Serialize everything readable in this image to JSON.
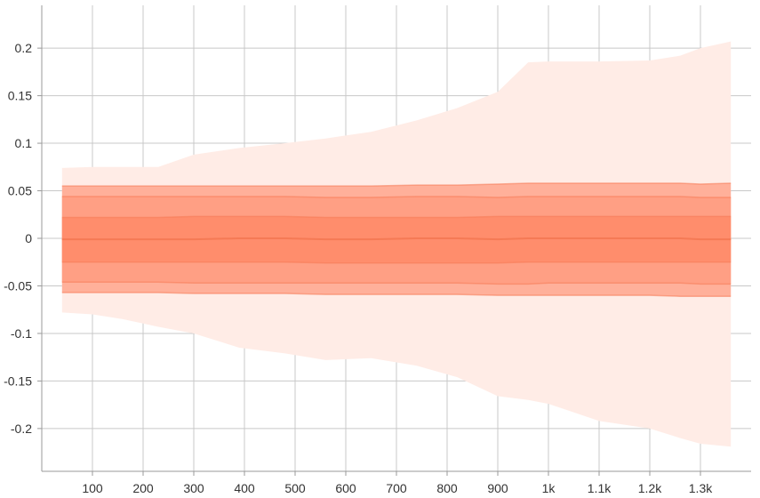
{
  "chart_data": {
    "type": "area",
    "title": "",
    "xlabel": "",
    "ylabel": "",
    "xlim": [
      0,
      1400
    ],
    "ylim": [
      -0.245,
      0.245
    ],
    "grid": true,
    "legend": "none",
    "x_ticks": [
      {
        "value": 100,
        "label": "100"
      },
      {
        "value": 200,
        "label": "200"
      },
      {
        "value": 300,
        "label": "300"
      },
      {
        "value": 400,
        "label": "400"
      },
      {
        "value": 500,
        "label": "500"
      },
      {
        "value": 600,
        "label": "600"
      },
      {
        "value": 700,
        "label": "700"
      },
      {
        "value": 800,
        "label": "800"
      },
      {
        "value": 900,
        "label": "900"
      },
      {
        "value": 1000,
        "label": "1k"
      },
      {
        "value": 1100,
        "label": "1.1k"
      },
      {
        "value": 1200,
        "label": "1.2k"
      },
      {
        "value": 1300,
        "label": "1.3k"
      }
    ],
    "y_ticks": [
      {
        "value": 0.2,
        "label": "0.2"
      },
      {
        "value": 0.15,
        "label": "0.15"
      },
      {
        "value": 0.1,
        "label": "0.1"
      },
      {
        "value": 0.05,
        "label": "0.05"
      },
      {
        "value": 0,
        "label": "0"
      },
      {
        "value": -0.05,
        "label": "-0.05"
      },
      {
        "value": -0.1,
        "label": "-0.1"
      },
      {
        "value": -0.15,
        "label": "-0.15"
      },
      {
        "value": -0.2,
        "label": "-0.2"
      }
    ],
    "x": [
      40,
      100,
      160,
      230,
      300,
      390,
      480,
      560,
      650,
      740,
      820,
      900,
      960,
      1000,
      1100,
      1200,
      1260,
      1300,
      1360
    ],
    "bands": [
      {
        "color": "#ffece6",
        "upper": [
          0.074,
          0.075,
          0.075,
          0.075,
          0.088,
          0.095,
          0.1,
          0.105,
          0.112,
          0.124,
          0.137,
          0.154,
          0.185,
          0.186,
          0.186,
          0.187,
          0.192,
          0.2,
          0.207
        ],
        "lower": [
          -0.078,
          -0.08,
          -0.085,
          -0.093,
          -0.1,
          -0.115,
          -0.121,
          -0.128,
          -0.126,
          -0.134,
          -0.146,
          -0.166,
          -0.17,
          -0.174,
          -0.192,
          -0.2,
          -0.21,
          -0.216,
          -0.219
        ]
      },
      {
        "color": "#ffb09a",
        "upper": [
          0.055,
          0.055,
          0.055,
          0.055,
          0.055,
          0.055,
          0.055,
          0.055,
          0.055,
          0.056,
          0.056,
          0.057,
          0.058,
          0.058,
          0.058,
          0.058,
          0.058,
          0.057,
          0.058
        ],
        "lower": [
          -0.057,
          -0.057,
          -0.057,
          -0.057,
          -0.058,
          -0.058,
          -0.058,
          -0.059,
          -0.059,
          -0.059,
          -0.059,
          -0.06,
          -0.06,
          -0.06,
          -0.06,
          -0.06,
          -0.061,
          -0.061,
          -0.061
        ]
      },
      {
        "color": "#ff9f84",
        "upper": [
          0.044,
          0.044,
          0.044,
          0.044,
          0.044,
          0.044,
          0.044,
          0.043,
          0.043,
          0.044,
          0.044,
          0.043,
          0.044,
          0.044,
          0.044,
          0.044,
          0.044,
          0.043,
          0.043
        ],
        "lower": [
          -0.046,
          -0.046,
          -0.046,
          -0.046,
          -0.047,
          -0.047,
          -0.047,
          -0.047,
          -0.047,
          -0.047,
          -0.047,
          -0.048,
          -0.048,
          -0.047,
          -0.047,
          -0.047,
          -0.047,
          -0.048,
          -0.048
        ]
      },
      {
        "color": "#ff8d6c",
        "upper": [
          0.022,
          0.022,
          0.022,
          0.022,
          0.023,
          0.023,
          0.023,
          0.022,
          0.022,
          0.022,
          0.022,
          0.023,
          0.023,
          0.023,
          0.023,
          0.023,
          0.023,
          0.023,
          0.023
        ],
        "lower": [
          -0.025,
          -0.025,
          -0.025,
          -0.025,
          -0.025,
          -0.025,
          -0.025,
          -0.026,
          -0.026,
          -0.026,
          -0.026,
          -0.026,
          -0.025,
          -0.025,
          -0.025,
          -0.025,
          -0.025,
          -0.025,
          -0.025
        ]
      }
    ],
    "median": {
      "color": "#f57a55",
      "values": [
        -0.001,
        -0.001,
        -0.001,
        -0.001,
        -0.001,
        0,
        0,
        -0.001,
        -0.001,
        0,
        0,
        -0.001,
        0,
        0,
        0,
        0,
        0,
        -0.001,
        -0.001
      ]
    }
  }
}
